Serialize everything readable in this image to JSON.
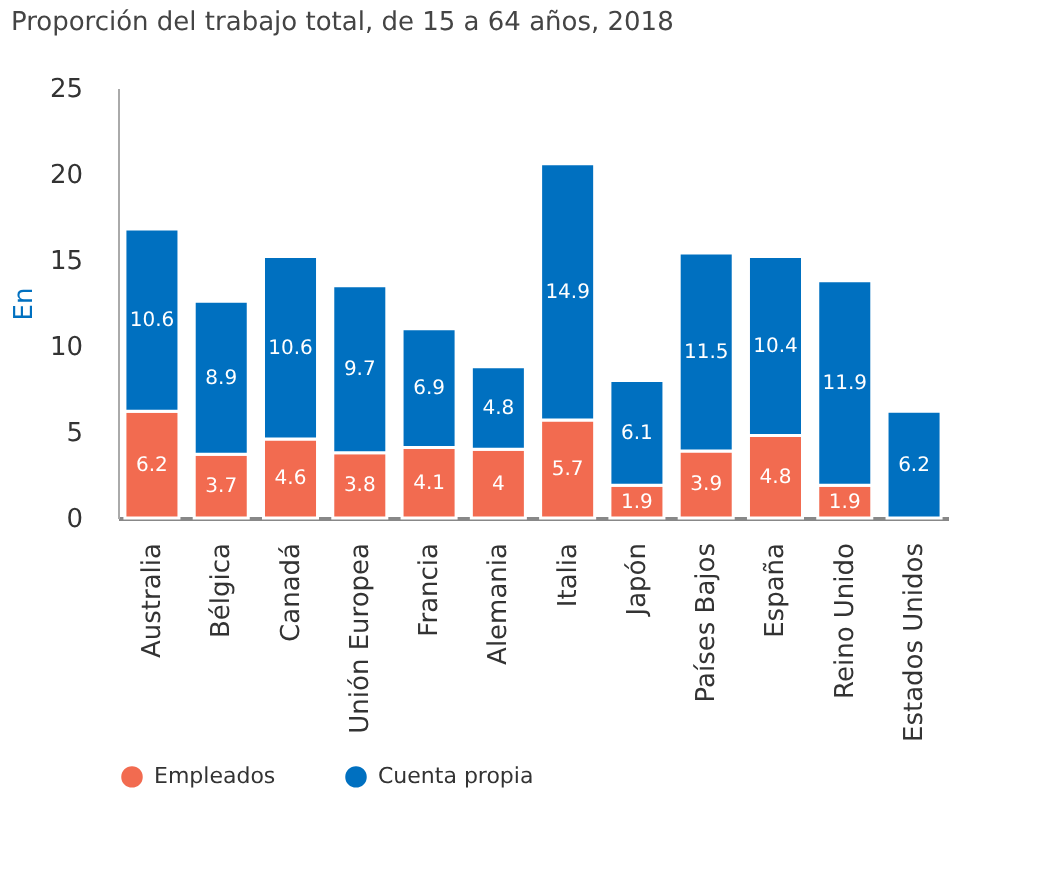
{
  "chart_data": {
    "type": "bar",
    "title": "Proporción del trabajo total, de 15 a 64 años, 2018",
    "ylabel": "En",
    "categories": [
      "Australia",
      "Bélgica",
      "Canadá",
      "Unión Europea",
      "Francia",
      "Alemania",
      "Italia",
      "Japón",
      "Países Bajos",
      "España",
      "Reino Unido",
      "Estados Unidos"
    ],
    "series": [
      {
        "name": "Empleados",
        "color": "#f26b50",
        "values": [
          6.2,
          3.7,
          4.6,
          3.8,
          4.1,
          4,
          5.7,
          1.9,
          3.9,
          4.8,
          1.9,
          null
        ]
      },
      {
        "name": "Cuenta propia",
        "color": "#0070c0",
        "values": [
          10.6,
          8.9,
          10.6,
          9.7,
          6.9,
          4.8,
          14.9,
          6.1,
          11.5,
          10.4,
          11.9,
          6.2
        ]
      }
    ],
    "stacked": true,
    "data_labels": true,
    "ylim": [
      0,
      25
    ],
    "yticks": [
      0,
      5,
      10,
      15,
      20,
      25
    ],
    "grid": false,
    "legend": "bottom left"
  }
}
